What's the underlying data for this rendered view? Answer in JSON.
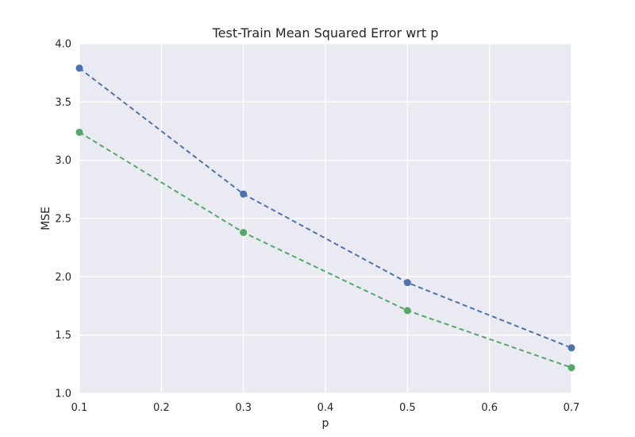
{
  "chart_data": {
    "type": "line",
    "title": "Test-Train Mean Squared Error wrt p",
    "xlabel": "p",
    "ylabel": "MSE",
    "x": [
      0.1,
      0.3,
      0.5,
      0.7
    ],
    "xlim": [
      0.1,
      0.7
    ],
    "ylim": [
      1.0,
      4.0
    ],
    "xticks": [
      "0.1",
      "0.2",
      "0.3",
      "0.4",
      "0.5",
      "0.6",
      "0.7"
    ],
    "yticks": [
      "1.0",
      "1.5",
      "2.0",
      "2.5",
      "3.0",
      "3.5",
      "4.0"
    ],
    "grid": true,
    "series": [
      {
        "values": [
          3.79,
          2.71,
          1.95,
          1.39
        ],
        "color": "#4c72b0",
        "line_style": "dashed",
        "marker": "circle"
      },
      {
        "values": [
          3.24,
          2.38,
          1.71,
          1.22
        ],
        "color": "#55a868",
        "line_style": "dashed",
        "marker": "circle"
      }
    ],
    "colors": {
      "plot_background": "#eaeaf2",
      "grid": "#ffffff"
    }
  }
}
